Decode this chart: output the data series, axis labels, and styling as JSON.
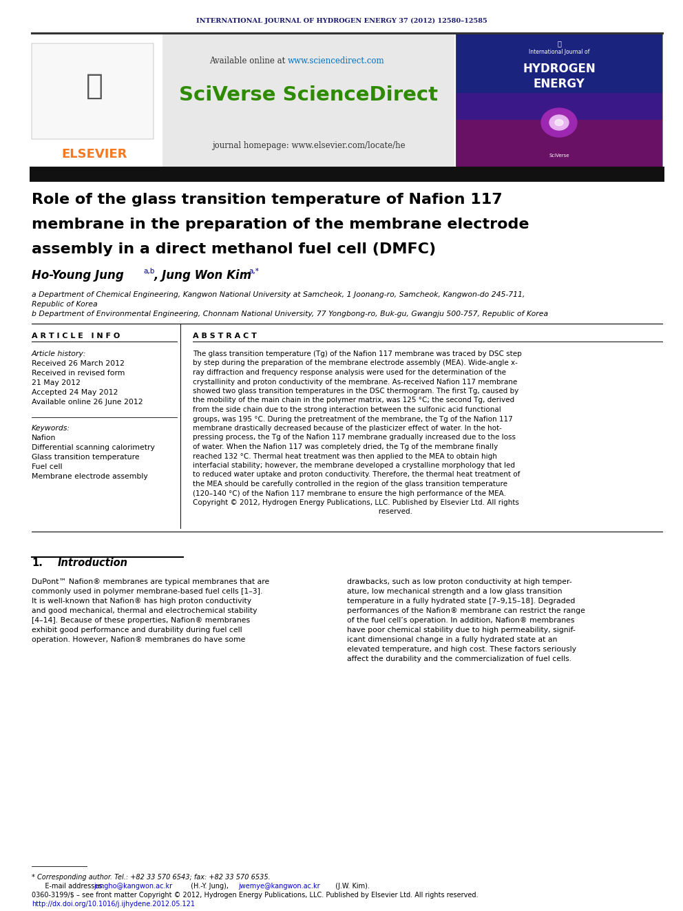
{
  "journal_header": "INTERNATIONAL JOURNAL OF HYDROGEN ENERGY 37 (2012) 12580–12585",
  "journal_header_color": "#1a1a6e",
  "available_online_prefix": "Available online at ",
  "available_online_url": "www.sciencedirect.com",
  "available_online_url_color": "#0070c0",
  "sciverse_text": "SciVerse ScienceDirect",
  "sciverse_color": "#2e8b00",
  "journal_homepage": "journal homepage: www.elsevier.com/locate/he",
  "elsevier_orange": "#f47920",
  "title_line1": "Role of the glass transition temperature of Nafion 117",
  "title_line2": "membrane in the preparation of the membrane electrode",
  "title_line3": "assembly in a direct methanol fuel cell (DMFC)",
  "author1_name": "Ho-Young Jung",
  "author1_sup": "a,b",
  "author2_name": ", Jung Won Kim",
  "author2_sup": "a,*",
  "affil_a": "a Department of Chemical Engineering, Kangwon National University at Samcheok, 1 Joonang-ro, Samcheok, Kangwon-do 245-711,",
  "affil_a2": "Republic of Korea",
  "affil_b": "b Department of Environmental Engineering, Chonnam National University, 77 Yongbong-ro, Buk-gu, Gwangju 500-757, Republic of Korea",
  "article_info_title": "A R T I C L E   I N F O",
  "article_history_label": "Article history:",
  "history_lines": [
    "Received 26 March 2012",
    "Received in revised form",
    "21 May 2012",
    "Accepted 24 May 2012",
    "Available online 26 June 2012"
  ],
  "keywords_label": "Keywords:",
  "keywords": [
    "Nafion",
    "Differential scanning calorimetry",
    "Glass transition temperature",
    "Fuel cell",
    "Membrane electrode assembly"
  ],
  "abstract_title": "A B S T R A C T",
  "abstract_lines": [
    "The glass transition temperature (T",
    "g) of the Nafion 117 membrane was traced by DSC step",
    "by step during the preparation of the membrane electrode assembly (MEA). Wide-angle x-",
    "ray diffraction and frequency response analysis were used for the determination of the",
    "crystallinity and proton conductivity of the membrane. As-received Nafion 117 membrane",
    "showed two glass transition temperatures in the DSC thermogram. The first T",
    "g, caused by",
    "the mobility of the main chain in the polymer matrix, was 125 °C; the second T",
    "g, derived",
    "from the side chain due to the strong interaction between the sulfonic acid functional",
    "groups, was 195 °C. During the pretreatment of the membrane, the T",
    "g of the Nafion 117",
    "membrane drastically decreased because of the plasticizer effect of water. In the hot-",
    "pressing process, the T",
    "g of the Nafion 117 membrane gradually increased due to the loss",
    "of water. When the Nafion 117 was completely dried, the T",
    "g of the membrane finally",
    "reached 132 °C. Thermal heat treatment was then applied to the MEA to obtain high",
    "interfacial stability; however, the membrane developed a crystalline morphology that led",
    "to reduced water uptake and proton conductivity. Therefore, the thermal heat treatment of",
    "the MEA should be carefully controlled in the region of the glass transition temperature",
    "(120–140 °C) of the Nafion 117 membrane to ensure the high performance of the MEA.",
    "Copyright © 2012, Hydrogen Energy Publications, LLC. Published by Elsevier Ltd. All rights",
    "                                                                                   reserved."
  ],
  "abstract_text": "The glass transition temperature (Tg) of the Nafion 117 membrane was traced by DSC step\nby step during the preparation of the membrane electrode assembly (MEA). Wide-angle x-\nray diffraction and frequency response analysis were used for the determination of the\ncrystallinity and proton conductivity of the membrane. As-received Nafion 117 membrane\nshowed two glass transition temperatures in the DSC thermogram. The first Tg, caused by\nthe mobility of the main chain in the polymer matrix, was 125 °C; the second Tg, derived\nfrom the side chain due to the strong interaction between the sulfonic acid functional\ngroups, was 195 °C. During the pretreatment of the membrane, the Tg of the Nafion 117\nmembrane drastically decreased because of the plasticizer effect of water. In the hot-\npressing process, the Tg of the Nafion 117 membrane gradually increased due to the loss\nof water. When the Nafion 117 was completely dried, the Tg of the membrane finally\nreached 132 °C. Thermal heat treatment was then applied to the MEA to obtain high\ninterfacial stability; however, the membrane developed a crystalline morphology that led\nto reduced water uptake and proton conductivity. Therefore, the thermal heat treatment of\nthe MEA should be carefully controlled in the region of the glass transition temperature\n(120–140 °C) of the Nafion 117 membrane to ensure the high performance of the MEA.\nCopyright © 2012, Hydrogen Energy Publications, LLC. Published by Elsevier Ltd. All rights\n                                                                                   reserved.",
  "section1_num": "1.",
  "section1_title": "Introduction",
  "intro_col1_lines": [
    "DuPont™ Nafion® membranes are typical membranes that are",
    "commonly used in polymer membrane-based fuel cells [1–3].",
    "It is well-known that Nafion® has high proton conductivity",
    "and good mechanical, thermal and electrochemical stability",
    "[4–14]. Because of these properties, Nafion® membranes",
    "exhibit good performance and durability during fuel cell",
    "operation. However, Nafion® membranes do have some"
  ],
  "intro_col2_lines": [
    "drawbacks, such as low proton conductivity at high temper-",
    "ature, low mechanical strength and a low glass transition",
    "temperature in a fully hydrated state [7–9,15–18]. Degraded",
    "performances of the Nafion® membrane can restrict the range",
    "of the fuel cell’s operation. In addition, Nafion® membranes",
    "have poor chemical stability due to high permeability, signif-",
    "icant dimensional change in a fully hydrated state at an",
    "elevated temperature, and high cost. These factors seriously",
    "affect the durability and the commercialization of fuel cells."
  ],
  "footer_line1": "* Corresponding author. Tel.: +82 33 570 6543; fax: +82 33 570 6535.",
  "footer_line2a": "   E-mail addresses: ",
  "footer_line2b": "jungho@kangwon.ac.kr",
  "footer_line2c": " (H.-Y. Jung), ",
  "footer_line2d": "jwemye@kangwon.ac.kr",
  "footer_line2e": " (J.W. Kim).",
  "footer_line3": "0360-3199/$ – see front matter Copyright © 2012, Hydrogen Energy Publications, LLC. Published by Elsevier Ltd. All rights reserved.",
  "footer_line4": "http://dx.doi.org/10.1016/j.ijhydene.2012.05.121",
  "link_color": "#0000cc",
  "background_color": "#ffffff"
}
